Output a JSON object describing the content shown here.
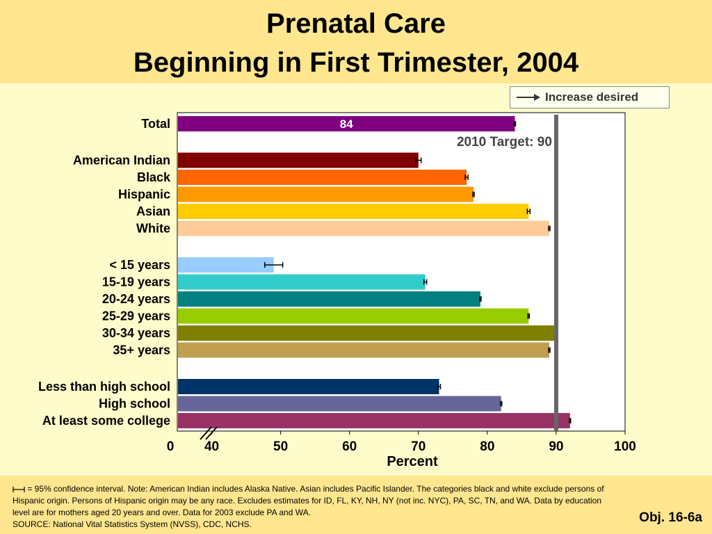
{
  "title": {
    "line1": "Prenatal Care",
    "line2": "Beginning in First Trimester, 2004"
  },
  "legend": {
    "label": "Increase desired",
    "arrow_icon": "right-arrow-icon"
  },
  "chart_data": {
    "type": "bar",
    "orientation": "horizontal",
    "xlabel": "Percent",
    "xlim": [
      35,
      100
    ],
    "x_axis_break": true,
    "x_ticks": [
      "0",
      "40",
      "50",
      "60",
      "70",
      "80",
      "90",
      "100"
    ],
    "target": {
      "value": 90,
      "label": "2010 Target: 90"
    },
    "groups": [
      {
        "bars": [
          {
            "label": "Total",
            "value": 84,
            "ci": 0.1,
            "color": "#800080",
            "data_label": "84"
          }
        ]
      },
      {
        "bars": [
          {
            "label": "American Indian",
            "value": 70,
            "ci": 0.4,
            "color": "#800000"
          },
          {
            "label": "Black",
            "value": 77,
            "ci": 0.2,
            "color": "#FF6600"
          },
          {
            "label": "Hispanic",
            "value": 78,
            "ci": 0.1,
            "color": "#FF9900"
          },
          {
            "label": "Asian",
            "value": 86,
            "ci": 0.2,
            "color": "#FFCC00"
          },
          {
            "label": "White",
            "value": 89,
            "ci": 0.1,
            "color": "#FFCC99"
          }
        ]
      },
      {
        "bars": [
          {
            "label": "< 15 years",
            "value": 49,
            "ci": 1.3,
            "color": "#99CCFF"
          },
          {
            "label": "15-19 years",
            "value": 71,
            "ci": 0.2,
            "color": "#33CCCC"
          },
          {
            "label": "20-24 years",
            "value": 79,
            "ci": 0.1,
            "color": "#008080"
          },
          {
            "label": "25-29 years",
            "value": 86,
            "ci": 0.1,
            "color": "#99CC00"
          },
          {
            "label": "30-34 years",
            "value": 90,
            "ci": 0.1,
            "color": "#808000"
          },
          {
            "label": "35+ years",
            "value": 89,
            "ci": 0.1,
            "color": "#C0A050"
          }
        ]
      },
      {
        "bars": [
          {
            "label": "Less than high school",
            "value": 73,
            "ci": 0.2,
            "color": "#003366"
          },
          {
            "label": "High school",
            "value": 82,
            "ci": 0.1,
            "color": "#666699"
          },
          {
            "label": "At least some college",
            "value": 92,
            "ci": 0.1,
            "color": "#993366"
          }
        ]
      }
    ]
  },
  "footnote": {
    "ci_icon": "confidence-interval-icon",
    "text": "= 95% confidence interval. Note: American Indian includes Alaska Native.  Asian includes Pacific Islander.  The categories black and white exclude persons of Hispanic origin.  Persons of Hispanic origin may be any race.  Excludes estimates for ID, FL, KY, NH, NY (not inc. NYC), PA, SC, TN, and WA.  Data by education level are for mothers aged 20 years and over.  Data for 2003 exclude PA and WA.",
    "source": "SOURCE: National Vital Statistics System (NVSS), CDC, NCHS."
  },
  "objective": "Obj. 16-6a"
}
